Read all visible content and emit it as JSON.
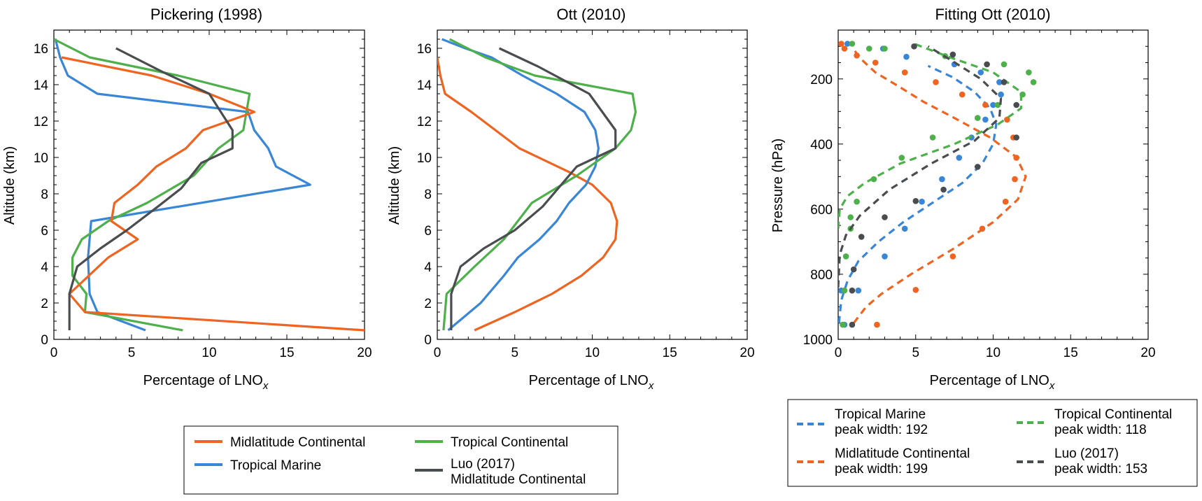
{
  "colors": {
    "midlatitude_continental": "#EE6420",
    "tropical_marine": "#3A86D6",
    "tropical_continental": "#4DB04A",
    "luo_2017": "#4A4D50"
  },
  "xlabel_main": "Percentage of LNO",
  "xlabel_sub": "x",
  "chart_data": [
    {
      "type": "line",
      "title": "Pickering (1998)",
      "ylabel": "Altitude (km)",
      "xlim": [
        0,
        20
      ],
      "ylim": [
        0,
        17
      ],
      "xticks": [
        "0",
        "5",
        "10",
        "15",
        "20"
      ],
      "yticks": [
        "0",
        "2",
        "4",
        "6",
        "8",
        "10",
        "12",
        "14",
        "16"
      ],
      "series": [
        {
          "key": "tropical_marine",
          "x": [
            5.9,
            2.8,
            2.3,
            2.2,
            2.4,
            16.5,
            14.3,
            13.8,
            12.9,
            12.5,
            2.8,
            0.9,
            0.4,
            0.1
          ],
          "y": [
            0.5,
            1.5,
            2.5,
            4.5,
            6.5,
            8.5,
            9.5,
            10.5,
            11.5,
            12.5,
            13.5,
            14.5,
            15.5,
            16.5
          ]
        },
        {
          "key": "tropical_continental",
          "x": [
            8.3,
            2.0,
            2.1,
            1.2,
            1.2,
            1.8,
            3.5,
            6.0,
            9.0,
            10.6,
            12.2,
            12.6,
            8.0,
            2.3,
            0.0
          ],
          "y": [
            0.5,
            1.5,
            2.5,
            3.5,
            4.5,
            5.5,
            6.5,
            7.5,
            9.0,
            10.5,
            11.5,
            13.5,
            14.5,
            15.5,
            16.5
          ]
        },
        {
          "key": "midlatitude_continental",
          "x": [
            20.0,
            2.0,
            1.0,
            3.5,
            5.4,
            3.7,
            3.9,
            5.4,
            6.6,
            8.5,
            9.6,
            12.9,
            10.0,
            6.3,
            0.5
          ],
          "y": [
            0.5,
            1.5,
            2.5,
            4.5,
            5.5,
            6.5,
            7.5,
            8.5,
            9.5,
            10.5,
            11.5,
            12.5,
            13.5,
            14.5,
            15.5
          ]
        },
        {
          "key": "luo_2017",
          "x": [
            1.0,
            1.0,
            1.0,
            1.5,
            3.0,
            4.7,
            6.7,
            8.2,
            9.5,
            11.5,
            11.5,
            10.0,
            7.0,
            4.0
          ],
          "y": [
            0.5,
            1.5,
            2.5,
            4.0,
            5.0,
            6.0,
            7.3,
            8.3,
            9.7,
            10.5,
            11.5,
            13.5,
            14.7,
            16.0
          ]
        }
      ]
    },
    {
      "type": "line",
      "title": "Ott (2010)",
      "ylabel": "Altitude (km)",
      "xlim": [
        0,
        20
      ],
      "ylim": [
        0,
        17
      ],
      "xticks": [
        "0",
        "5",
        "10",
        "15",
        "20"
      ],
      "yticks": [
        "0",
        "2",
        "4",
        "6",
        "8",
        "10",
        "12",
        "14",
        "16"
      ],
      "series": [
        {
          "key": "midlatitude_continental",
          "x": [
            2.4,
            5.0,
            7.4,
            9.3,
            10.7,
            11.5,
            11.6,
            11.2,
            10.0,
            8.5,
            5.3,
            2.2,
            0.5,
            0.2,
            0.0
          ],
          "y": [
            0.5,
            1.5,
            2.5,
            3.5,
            4.5,
            5.5,
            6.5,
            7.5,
            8.5,
            9.2,
            10.5,
            12.5,
            13.5,
            14.5,
            15.5
          ]
        },
        {
          "key": "tropical_marine",
          "x": [
            0.7,
            2.8,
            4.3,
            5.2,
            6.6,
            7.7,
            8.5,
            9.6,
            10.2,
            10.4,
            10.2,
            9.5,
            7.7,
            5.5,
            3.5,
            1.8,
            0.3
          ],
          "y": [
            0.5,
            2.0,
            3.5,
            4.5,
            5.5,
            6.5,
            7.5,
            8.5,
            9.5,
            10.5,
            11.5,
            12.5,
            13.5,
            14.5,
            15.5,
            16.0,
            16.5
          ]
        },
        {
          "key": "tropical_continental",
          "x": [
            0.4,
            0.6,
            2.4,
            4.3,
            6.1,
            9.0,
            11.5,
            12.5,
            12.8,
            12.6,
            6.3,
            3.1,
            0.8
          ],
          "y": [
            0.5,
            2.5,
            4.0,
            5.5,
            7.5,
            9.0,
            10.5,
            11.5,
            12.5,
            13.5,
            14.5,
            15.5,
            16.5
          ]
        },
        {
          "key": "luo_2017",
          "x": [
            0.9,
            0.9,
            1.5,
            3.0,
            5.0,
            6.8,
            9.0,
            11.5,
            11.5,
            9.8,
            6.5,
            4.0
          ],
          "y": [
            0.5,
            2.5,
            4.0,
            5.0,
            6.0,
            7.3,
            9.5,
            10.5,
            11.5,
            13.5,
            15.0,
            16.0
          ]
        }
      ]
    },
    {
      "type": "scatter+line",
      "title": "Fitting Ott (2010)",
      "ylabel": "Pressure (hPa)",
      "xlim": [
        0,
        20
      ],
      "ylim": [
        1000,
        50
      ],
      "xticks": [
        "0",
        "5",
        "10",
        "15",
        "20"
      ],
      "yticks": [
        "200",
        "400",
        "600",
        "800",
        "1000"
      ],
      "series": [
        {
          "key": "tropical_marine",
          "points": {
            "x": [
              0.4,
              0.2,
              1.3,
              3.0,
              4.3,
              5.4,
              6.7,
              7.8,
              8.6,
              9.5,
              10.0,
              10.5,
              10.4,
              9.2,
              7.5,
              4.4,
              2.9,
              0.6
            ],
            "p": [
              955,
              850,
              850,
              745,
              660,
              577,
              508,
              442,
              380,
              325,
              280,
              248,
              210,
              180,
              155,
              132,
              107,
              92
            ]
          },
          "fit": {
            "x": [
              0.05,
              0.2,
              0.6,
              1.3,
              2.6,
              4.2,
              6.1,
              8.0,
              9.3,
              10.0,
              10.2,
              9.8,
              8.8,
              7.4,
              5.8
            ],
            "p": [
              950,
              880,
              820,
              760,
              700,
              640,
              580,
              520,
              460,
              400,
              340,
              290,
              240,
              195,
              160
            ]
          },
          "label_line1": "Tropical Marine",
          "label_line2": " peak width: 192"
        },
        {
          "key": "midlatitude_continental",
          "points": {
            "x": [
              2.5,
              5.0,
              7.4,
              9.3,
              10.8,
              11.4,
              11.5,
              11.3,
              10.9,
              9.5,
              8.0,
              6.3,
              4.3,
              2.4,
              1.2,
              0.4,
              0.2
            ],
            "p": [
              955,
              848,
              745,
              660,
              577,
              508,
              442,
              380,
              325,
              280,
              248,
              210,
              180,
              150,
              128,
              107,
              92
            ]
          },
          "fit": {
            "x": [
              1.0,
              1.8,
              2.8,
              4.7,
              7.5,
              10.0,
              11.6,
              12.1,
              11.5,
              9.8,
              7.5,
              5.5,
              3.8,
              2.4,
              1.5,
              1.0
            ],
            "p": [
              950,
              900,
              860,
              800,
              720,
              640,
              570,
              500,
              440,
              380,
              320,
              270,
              220,
              180,
              140,
              110
            ]
          },
          "label_line1": "Midlatitude Continental",
          "label_line2": " peak width: 199"
        },
        {
          "key": "tropical_continental",
          "points": {
            "x": [
              0.3,
              0.4,
              0.5,
              0.8,
              0.8,
              1.2,
              2.3,
              4.1,
              6.1,
              9.0,
              10.3,
              11.9,
              12.6,
              12.3,
              10.7,
              6.9,
              3.0,
              2.0,
              0.9
            ],
            "p": [
              955,
              850,
              745,
              660,
              625,
              577,
              508,
              442,
              380,
              320,
              280,
              248,
              210,
              180,
              155,
              130,
              107,
              107,
              92
            ]
          },
          "fit": {
            "x": [
              0.0,
              0.1,
              0.6,
              1.7,
              4.0,
              7.5,
              10.3,
              11.8,
              11.8,
              10.0,
              7.0,
              4.8
            ],
            "p": [
              660,
              600,
              560,
              520,
              460,
              400,
              340,
              290,
              240,
              180,
              130,
              90
            ]
          },
          "label_line1": "Tropical Continental",
          "label_line2": " peak width: 118"
        },
        {
          "key": "luo_2017",
          "points": {
            "x": [
              0.9,
              0.9,
              1.0,
              1.5,
              3.0,
              5.0,
              6.8,
              9.0,
              11.5,
              11.5,
              10.7,
              9.6,
              7.4,
              4.9
            ],
            "p": [
              955,
              850,
              785,
              685,
              625,
              575,
              540,
              470,
              380,
              280,
              210,
              155,
              125,
              100
            ]
          },
          "fit": {
            "x": [
              0.0,
              0.1,
              0.5,
              1.4,
              3.3,
              6.0,
              8.8,
              10.4,
              10.5,
              9.2,
              7.2,
              5.8
            ],
            "p": [
              840,
              740,
              680,
              620,
              540,
              460,
              390,
              320,
              260,
              200,
              140,
              100
            ]
          },
          "label_line1": "Luo (2017)",
          "label_line2": " peak width: 153"
        }
      ]
    }
  ],
  "legend_left": {
    "items": [
      {
        "key": "midlatitude_continental",
        "label": "Midlatitude Continental"
      },
      {
        "key": "tropical_continental",
        "label": "Tropical Continental"
      },
      {
        "key": "tropical_marine",
        "label": "Tropical Marine"
      },
      {
        "key": "luo_2017",
        "label": "Luo (2017)",
        "label2": " Midlatitude Continental"
      }
    ]
  }
}
